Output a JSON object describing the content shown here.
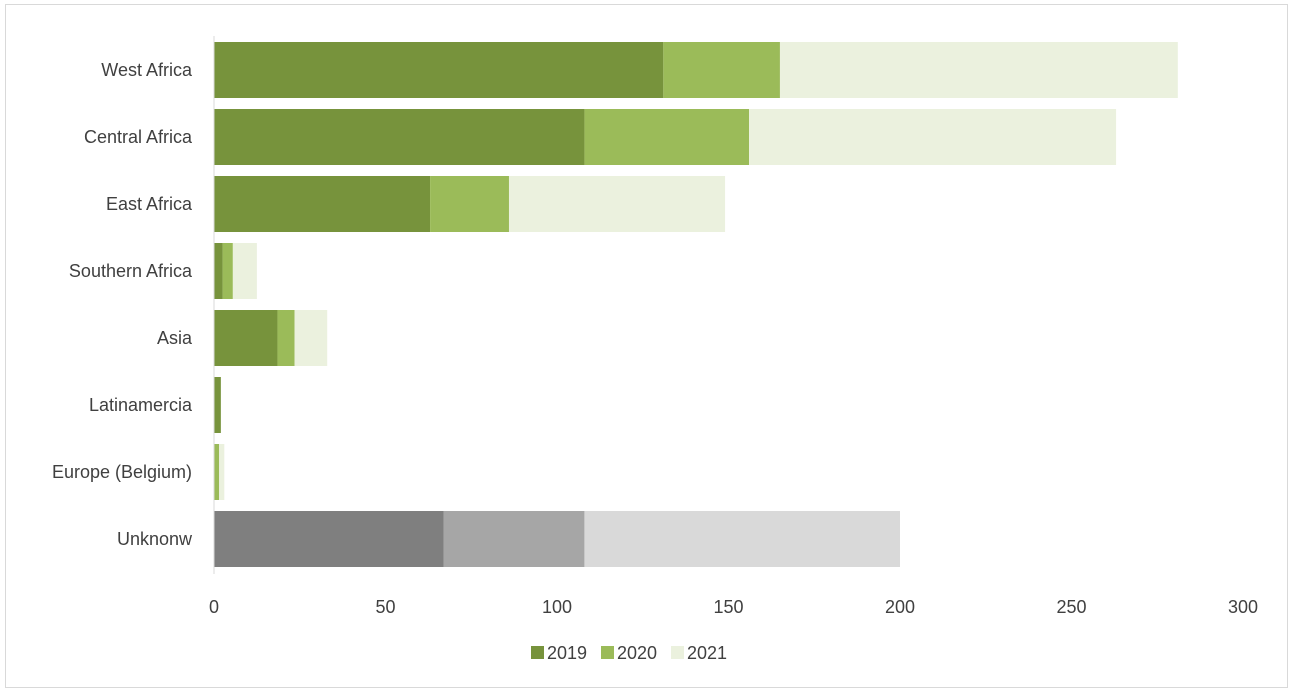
{
  "chart_data": {
    "type": "bar",
    "orientation": "horizontal",
    "stacked": true,
    "title": "",
    "xlabel": "",
    "ylabel": "",
    "xlim": [
      0,
      300
    ],
    "xticks": [
      0,
      50,
      100,
      150,
      200,
      250,
      300
    ],
    "grid": false,
    "legend_position": "bottom",
    "categories": [
      "West Africa",
      "Central Africa",
      "East Africa",
      "Southern Africa",
      "Asia",
      "Latinamercia",
      "Europe (Belgium)",
      "Unknonw"
    ],
    "series": [
      {
        "name": "2019",
        "color": "#77933c",
        "values": [
          131,
          108,
          63,
          2.5,
          18.5,
          2,
          0,
          67
        ]
      },
      {
        "name": "2020",
        "color": "#9bbb59",
        "values": [
          34,
          48,
          23,
          3,
          5,
          0,
          1.5,
          41
        ]
      },
      {
        "name": "2021",
        "color": "#ebf1de",
        "values": [
          116,
          107,
          63,
          7,
          9.5,
          0,
          1.5,
          92
        ]
      }
    ],
    "unknown_bar_colors": [
      "#7f7f7f",
      "#a6a6a6",
      "#d9d9d9"
    ]
  }
}
